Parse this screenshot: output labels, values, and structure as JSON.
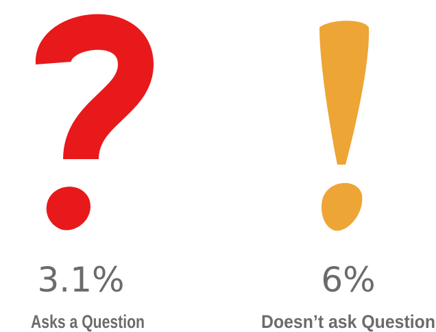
{
  "items": [
    {
      "value": "3.1%",
      "label": "Asks a Question"
    },
    {
      "value": "6%",
      "label": "Doesn’t ask Question"
    }
  ]
}
